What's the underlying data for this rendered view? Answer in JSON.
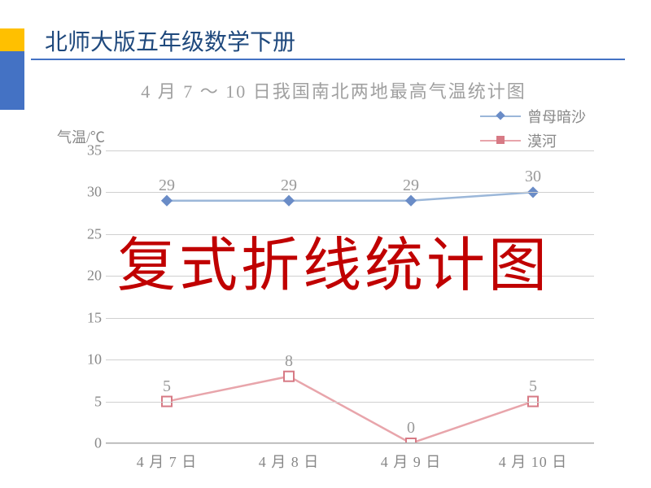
{
  "header": {
    "title": "北师大版五年级数学下册",
    "title_color": "#1f497d",
    "accent_yellow": "#ffc000",
    "accent_blue": "#4472c4"
  },
  "chart": {
    "type": "line",
    "title": "4 月 7 ～ 10 日我国南北两地最高气温统计图",
    "y_label": "气温/℃",
    "ylim": [
      0,
      35
    ],
    "ytick_step": 5,
    "yticks": [
      0,
      5,
      10,
      15,
      20,
      25,
      30,
      35
    ],
    "categories": [
      "4 月 7 日",
      "4 月 8 日",
      "4 月 9 日",
      "4 月 10 日"
    ],
    "grid_color": "#d0d0d0",
    "axis_color": "#b0b0b0",
    "text_color": "#888888",
    "label_fontsize": 18,
    "series": [
      {
        "name": "曾母暗沙",
        "color": "#9bb7d9",
        "marker": "diamond",
        "marker_color": "#6a8cc7",
        "values": [
          29,
          29,
          29,
          30
        ]
      },
      {
        "name": "漠河",
        "color": "#e8a5ab",
        "marker": "square",
        "marker_color": "#d77a85",
        "values": [
          5,
          8,
          0,
          5
        ]
      }
    ]
  },
  "overlay": {
    "text": "复式折线统计图",
    "color": "#c00000",
    "fontsize": 72
  }
}
